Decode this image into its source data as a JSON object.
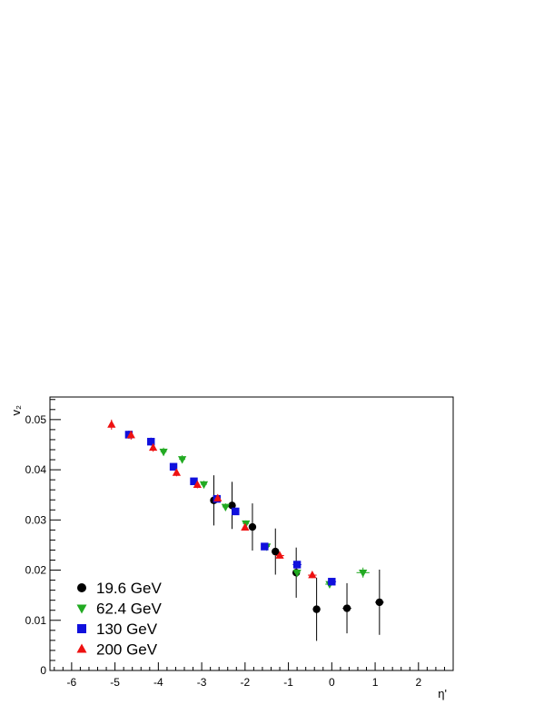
{
  "chart_data": {
    "type": "scatter",
    "title": "",
    "xlabel": "η'",
    "ylabel": "v₂",
    "xlim": [
      -6.5,
      2.8
    ],
    "ylim": [
      0,
      0.0545
    ],
    "xticks": [
      -6,
      -5,
      -4,
      -3,
      -2,
      -1,
      0,
      1,
      2
    ],
    "xtick_labels": [
      "-6",
      "-5",
      "-4",
      "-3",
      "-2",
      "-1",
      "0",
      "1",
      "2"
    ],
    "yticks": [
      0,
      0.01,
      0.02,
      0.03,
      0.04,
      0.05
    ],
    "ytick_labels": [
      "0",
      "0.01",
      "0.02",
      "0.03",
      "0.04",
      "0.05"
    ],
    "grid": false,
    "legend_position": "bottom-left",
    "series": [
      {
        "name": "19.6 GeV",
        "marker": "circle",
        "color": "#000000",
        "points": [
          {
            "x": -2.72,
            "y": 0.0339,
            "yerr": 0.005,
            "xerr": 0.05
          },
          {
            "x": -2.3,
            "y": 0.0329,
            "yerr": 0.0047,
            "xerr": 0.05
          },
          {
            "x": -1.83,
            "y": 0.0286,
            "yerr": 0.0047,
            "xerr": 0.05
          },
          {
            "x": -1.3,
            "y": 0.0237,
            "yerr": 0.0046,
            "xerr": 0.05
          },
          {
            "x": -0.82,
            "y": 0.0195,
            "yerr": 0.005,
            "xerr": 0.05
          },
          {
            "x": -0.35,
            "y": 0.0122,
            "yerr": 0.0063,
            "xerr": 0.05
          },
          {
            "x": 0.35,
            "y": 0.0124,
            "yerr": 0.005,
            "xerr": 0.1
          },
          {
            "x": 1.1,
            "y": 0.0136,
            "yerr": 0.0065,
            "xerr": 0.1
          }
        ]
      },
      {
        "name": "62.4 GeV",
        "marker": "triangle-down",
        "color": "#22aa22",
        "points": [
          {
            "x": -3.88,
            "y": 0.0436,
            "yerr": 0.0008,
            "xerr": 0.07
          },
          {
            "x": -3.45,
            "y": 0.0421,
            "yerr": 0.0008,
            "xerr": 0.07
          },
          {
            "x": -2.95,
            "y": 0.0371,
            "yerr": 0.0007,
            "xerr": 0.07
          },
          {
            "x": -2.45,
            "y": 0.0326,
            "yerr": 0.0007,
            "xerr": 0.07
          },
          {
            "x": -1.98,
            "y": 0.0293,
            "yerr": 0.0006,
            "xerr": 0.07
          },
          {
            "x": -1.5,
            "y": 0.0247,
            "yerr": 0.0006,
            "xerr": 0.07
          },
          {
            "x": -0.8,
            "y": 0.0195,
            "yerr": 0.0006,
            "xerr": 0.07
          },
          {
            "x": -0.05,
            "y": 0.0172,
            "yerr": 0.0006,
            "xerr": 0.1
          },
          {
            "x": 0.72,
            "y": 0.0195,
            "yerr": 0.001,
            "xerr": 0.15
          }
        ]
      },
      {
        "name": "130 GeV",
        "marker": "square",
        "color": "#1010dd",
        "points": [
          {
            "x": -4.68,
            "y": 0.047,
            "yerr": 0.0008,
            "xerr": 0.05
          },
          {
            "x": -4.17,
            "y": 0.0456,
            "yerr": 0.0008,
            "xerr": 0.05
          },
          {
            "x": -3.65,
            "y": 0.0406,
            "yerr": 0.0007,
            "xerr": 0.05
          },
          {
            "x": -3.18,
            "y": 0.0377,
            "yerr": 0.0007,
            "xerr": 0.05
          },
          {
            "x": -2.65,
            "y": 0.0342,
            "yerr": 0.0007,
            "xerr": 0.05
          },
          {
            "x": -2.22,
            "y": 0.0317,
            "yerr": 0.0007,
            "xerr": 0.05
          },
          {
            "x": -1.55,
            "y": 0.0247,
            "yerr": 0.0006,
            "xerr": 0.05
          },
          {
            "x": -0.8,
            "y": 0.0211,
            "yerr": 0.0006,
            "xerr": 0.1
          },
          {
            "x": 0.0,
            "y": 0.0177,
            "yerr": 0.0006,
            "xerr": 0.1
          }
        ]
      },
      {
        "name": "200 GeV",
        "marker": "triangle-up",
        "color": "#ee1111",
        "points": [
          {
            "x": -5.08,
            "y": 0.049,
            "yerr": 0.001,
            "xerr": 0.05
          },
          {
            "x": -4.63,
            "y": 0.0469,
            "yerr": 0.0009,
            "xerr": 0.05
          },
          {
            "x": -4.12,
            "y": 0.0444,
            "yerr": 0.0008,
            "xerr": 0.05
          },
          {
            "x": -3.58,
            "y": 0.0394,
            "yerr": 0.0007,
            "xerr": 0.05
          },
          {
            "x": -3.1,
            "y": 0.037,
            "yerr": 0.0007,
            "xerr": 0.05
          },
          {
            "x": -2.63,
            "y": 0.0343,
            "yerr": 0.0006,
            "xerr": 0.05
          },
          {
            "x": -2.0,
            "y": 0.0285,
            "yerr": 0.0006,
            "xerr": 0.05
          },
          {
            "x": -1.2,
            "y": 0.0229,
            "yerr": 0.0006,
            "xerr": 0.1
          },
          {
            "x": -0.45,
            "y": 0.019,
            "yerr": 0.0006,
            "xerr": 0.1
          }
        ]
      }
    ]
  }
}
